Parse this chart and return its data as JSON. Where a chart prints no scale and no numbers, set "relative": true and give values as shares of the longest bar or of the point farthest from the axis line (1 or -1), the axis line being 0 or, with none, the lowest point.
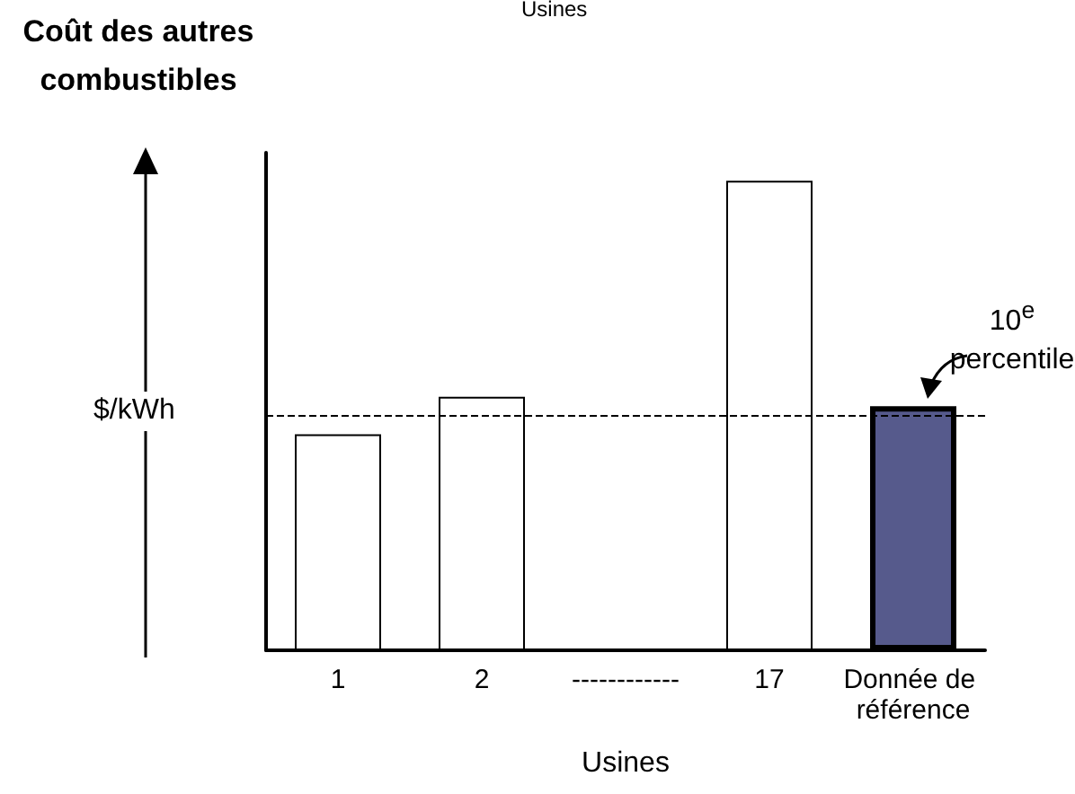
{
  "chart_data": {
    "type": "bar",
    "relative": true,
    "xlabel": "Usines",
    "ylabel": "Coût des autres combustibles",
    "categories": [
      "1",
      "2",
      "------------",
      "17",
      "Donnée de référence"
    ],
    "values": [
      0.46,
      0.54,
      null,
      1,
      0.52
    ],
    "colors": [
      "#ffffff",
      "#ffffff",
      "#ffffff",
      "#ffffff",
      "#565a8c"
    ],
    "ref_lines": [
      {
        "axis": "y",
        "value": 0.5,
        "color": "#000000",
        "line_style": "dashed"
      }
    ],
    "annotations": [
      "$/kWh",
      "10$^{e}$ percentile",
      "Usines"
    ],
    "grid": false
  }
}
